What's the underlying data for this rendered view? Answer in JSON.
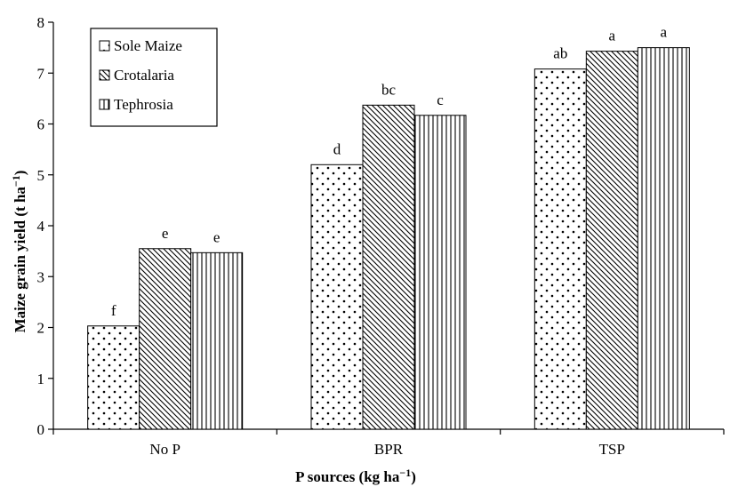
{
  "chart_data": {
    "type": "bar",
    "categories": [
      "No P",
      "BPR",
      "TSP"
    ],
    "series": [
      {
        "name": "Sole Maize",
        "values": [
          2.03,
          5.2,
          7.08
        ],
        "labels": [
          "f",
          "d",
          "ab"
        ],
        "pattern": "dots"
      },
      {
        "name": "Crotalaria",
        "values": [
          3.55,
          6.37,
          7.43
        ],
        "labels": [
          "e",
          "bc",
          "a"
        ],
        "pattern": "diagonal"
      },
      {
        "name": "Tephrosia",
        "values": [
          3.47,
          6.17,
          7.5
        ],
        "labels": [
          "e",
          "c",
          "a"
        ],
        "pattern": "vertical"
      }
    ],
    "title": "",
    "xlabel": "P sources (kg ha",
    "xlabel_sup": "−1",
    "xlabel_suffix": ")",
    "ylabel": "Maize grain yield (t ha",
    "ylabel_sup": "−1",
    "ylabel_suffix": ")",
    "ylim": [
      0,
      8
    ],
    "yticks": [
      0,
      1,
      2,
      3,
      4,
      5,
      6,
      7,
      8
    ],
    "grid": false,
    "legend_position": "top-left"
  }
}
